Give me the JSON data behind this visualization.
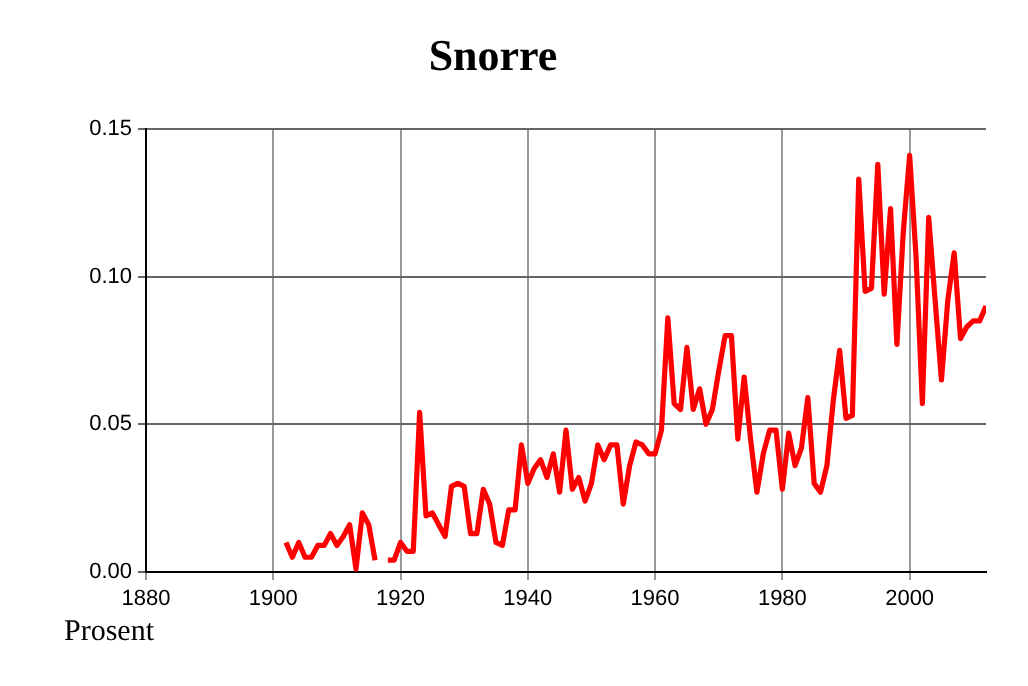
{
  "chart_data": {
    "type": "line",
    "title": "Snorre",
    "annotations": [
      "Prosent"
    ],
    "x": [
      1902,
      1903,
      1904,
      1905,
      1906,
      1907,
      1908,
      1909,
      1910,
      1911,
      1912,
      1913,
      1914,
      1915,
      1916,
      1917,
      1918,
      1919,
      1920,
      1921,
      1922,
      1923,
      1924,
      1925,
      1926,
      1927,
      1928,
      1929,
      1930,
      1931,
      1932,
      1933,
      1934,
      1935,
      1936,
      1937,
      1938,
      1939,
      1940,
      1941,
      1942,
      1943,
      1944,
      1945,
      1946,
      1947,
      1948,
      1949,
      1950,
      1951,
      1952,
      1953,
      1954,
      1955,
      1956,
      1957,
      1958,
      1959,
      1960,
      1961,
      1962,
      1963,
      1964,
      1965,
      1966,
      1967,
      1968,
      1969,
      1970,
      1971,
      1972,
      1973,
      1974,
      1975,
      1976,
      1977,
      1978,
      1979,
      1980,
      1981,
      1982,
      1983,
      1984,
      1985,
      1986,
      1987,
      1988,
      1989,
      1990,
      1991,
      1992,
      1993,
      1994,
      1995,
      1996,
      1997,
      1998,
      1999,
      2000,
      2001,
      2002,
      2003,
      2004,
      2005,
      2006,
      2007,
      2008,
      2009,
      2010,
      2011,
      2012
    ],
    "series": [
      {
        "color": "#ff0000",
        "values": [
          0.01,
          0.005,
          0.01,
          0.005,
          0.005,
          0.009,
          0.009,
          0.013,
          0.009,
          0.012,
          0.016,
          0.001,
          0.02,
          0.016,
          0.004,
          null,
          0.004,
          0.004,
          0.01,
          0.007,
          0.007,
          0.054,
          0.019,
          0.02,
          0.016,
          0.012,
          0.029,
          0.03,
          0.029,
          0.013,
          0.013,
          0.028,
          0.023,
          0.01,
          0.009,
          0.021,
          0.021,
          0.043,
          0.03,
          0.035,
          0.038,
          0.032,
          0.04,
          0.027,
          0.048,
          0.028,
          0.032,
          0.024,
          0.03,
          0.043,
          0.038,
          0.043,
          0.043,
          0.023,
          0.036,
          0.044,
          0.043,
          0.04,
          0.04,
          0.048,
          0.086,
          0.057,
          0.055,
          0.076,
          0.055,
          0.062,
          0.05,
          0.055,
          0.068,
          0.08,
          0.08,
          0.045,
          0.066,
          0.045,
          0.027,
          0.04,
          0.048,
          0.048,
          0.028,
          0.047,
          0.036,
          0.042,
          0.059,
          0.03,
          0.027,
          0.036,
          0.058,
          0.075,
          0.052,
          0.053,
          0.133,
          0.095,
          0.096,
          0.138,
          0.094,
          0.123,
          0.077,
          0.115,
          0.141,
          0.107,
          0.057,
          0.12,
          0.092,
          0.065,
          0.092,
          0.108,
          0.079,
          0.083,
          0.085,
          0.085,
          0.09
        ]
      }
    ],
    "xlim": [
      1880,
      2012
    ],
    "xticks": [
      1880,
      1900,
      1920,
      1940,
      1960,
      1980,
      2000
    ],
    "ylim": [
      0,
      0.15
    ],
    "yticks": [
      {
        "value": 0,
        "label": "0.00"
      },
      {
        "value": 0.05,
        "label": "0.05"
      },
      {
        "value": 0.1,
        "label": "0.10"
      },
      {
        "value": 0.15,
        "label": "0.15"
      }
    ],
    "grid": true,
    "legend": false,
    "marker": "none",
    "line_style": "solid"
  }
}
